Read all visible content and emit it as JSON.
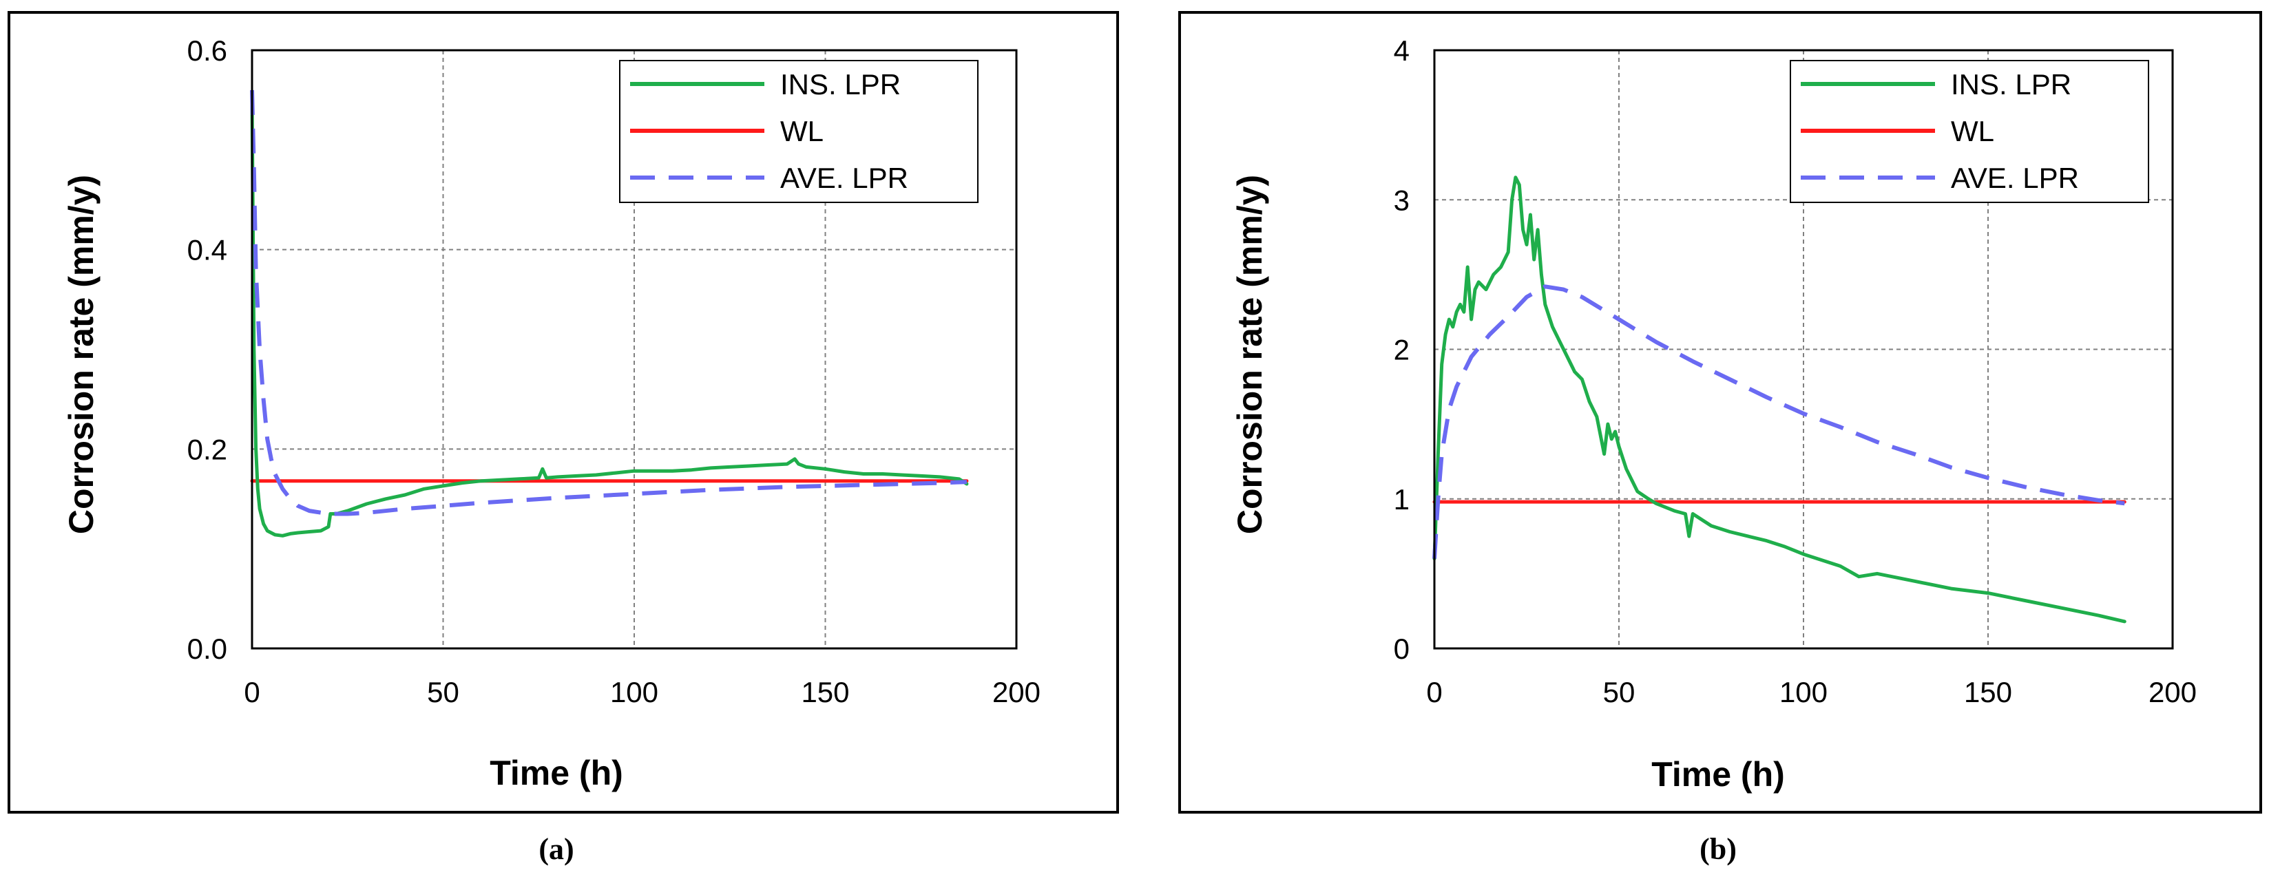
{
  "colors": {
    "ins": "#1fae4b",
    "wl": "#ff1a1a",
    "ave": "#6a6af2",
    "grid": "#808080",
    "frame": "#000000"
  },
  "chart_data": [
    {
      "type": "line",
      "caption": "(a)",
      "xlabel": "Time (h)",
      "ylabel": "Corrosion rate (mm/y)",
      "xlim": [
        0,
        200
      ],
      "ylim": [
        0,
        0.6
      ],
      "xticks": [
        0,
        50,
        100,
        150,
        200
      ],
      "yticks": [
        0,
        0.2,
        0.4,
        0.6
      ],
      "xtick_labels": [
        "0",
        "50",
        "100",
        "150",
        "200"
      ],
      "ytick_labels": [
        "0.0",
        "0.2",
        "0.4",
        "0.6"
      ],
      "grid": true,
      "legend_position": "top-right",
      "series": [
        {
          "name": "INS. LPR",
          "style": "solid",
          "color": "#1fae4b",
          "x": [
            0,
            0.5,
            1,
            1.5,
            2,
            3,
            4,
            6,
            8,
            10,
            12,
            15,
            18,
            20,
            20.5,
            22,
            25,
            30,
            35,
            40,
            45,
            50,
            55,
            60,
            65,
            70,
            75,
            76,
            77,
            80,
            85,
            90,
            95,
            100,
            105,
            110,
            115,
            120,
            125,
            130,
            135,
            140,
            142,
            143,
            145,
            150,
            155,
            160,
            165,
            170,
            175,
            180,
            185,
            187
          ],
          "y": [
            0.55,
            0.3,
            0.2,
            0.16,
            0.14,
            0.125,
            0.118,
            0.114,
            0.113,
            0.115,
            0.116,
            0.117,
            0.118,
            0.122,
            0.135,
            0.135,
            0.138,
            0.145,
            0.15,
            0.154,
            0.16,
            0.163,
            0.166,
            0.168,
            0.169,
            0.17,
            0.171,
            0.18,
            0.171,
            0.172,
            0.173,
            0.174,
            0.176,
            0.178,
            0.178,
            0.178,
            0.179,
            0.181,
            0.182,
            0.183,
            0.184,
            0.185,
            0.19,
            0.185,
            0.182,
            0.18,
            0.177,
            0.175,
            0.175,
            0.174,
            0.173,
            0.172,
            0.17,
            0.165
          ]
        },
        {
          "name": "WL",
          "style": "solid",
          "color": "#ff1a1a",
          "x": [
            0,
            187
          ],
          "y": [
            0.168,
            0.168
          ]
        },
        {
          "name": "AVE. LPR",
          "style": "dashed",
          "color": "#6a6af2",
          "x": [
            0,
            0.5,
            1,
            2,
            3,
            4,
            5,
            6,
            8,
            10,
            12,
            15,
            20,
            25,
            30,
            40,
            50,
            60,
            80,
            100,
            120,
            140,
            160,
            180,
            187
          ],
          "y": [
            0.56,
            0.48,
            0.38,
            0.3,
            0.25,
            0.21,
            0.19,
            0.175,
            0.16,
            0.15,
            0.143,
            0.138,
            0.135,
            0.135,
            0.136,
            0.14,
            0.143,
            0.146,
            0.151,
            0.155,
            0.159,
            0.162,
            0.164,
            0.166,
            0.167
          ]
        }
      ]
    },
    {
      "type": "line",
      "caption": "(b)",
      "xlabel": "Time (h)",
      "ylabel": "Corrosion rate (mm/y)",
      "xlim": [
        0,
        200
      ],
      "ylim": [
        0,
        4
      ],
      "xticks": [
        0,
        50,
        100,
        150,
        200
      ],
      "yticks": [
        0,
        1,
        2,
        3,
        4
      ],
      "xtick_labels": [
        "0",
        "50",
        "100",
        "150",
        "200"
      ],
      "ytick_labels": [
        "0",
        "1",
        "2",
        "3",
        "4"
      ],
      "grid": true,
      "legend_position": "top-right",
      "series": [
        {
          "name": "INS. LPR",
          "style": "solid",
          "color": "#1fae4b",
          "x": [
            0,
            1,
            2,
            3,
            4,
            5,
            6,
            7,
            8,
            9,
            10,
            11,
            12,
            14,
            16,
            18,
            20,
            21,
            22,
            23,
            24,
            25,
            26,
            27,
            28,
            29,
            30,
            32,
            34,
            36,
            38,
            40,
            42,
            44,
            46,
            47,
            48,
            49,
            50,
            52,
            55,
            58,
            60,
            65,
            68,
            69,
            70,
            75,
            80,
            85,
            90,
            95,
            100,
            110,
            115,
            120,
            130,
            140,
            150,
            160,
            170,
            180,
            187
          ],
          "y": [
            0.6,
            1.3,
            1.9,
            2.1,
            2.2,
            2.15,
            2.25,
            2.3,
            2.25,
            2.55,
            2.2,
            2.4,
            2.45,
            2.4,
            2.5,
            2.55,
            2.65,
            3.0,
            3.15,
            3.1,
            2.8,
            2.7,
            2.9,
            2.6,
            2.8,
            2.5,
            2.3,
            2.15,
            2.05,
            1.95,
            1.85,
            1.8,
            1.65,
            1.55,
            1.3,
            1.5,
            1.4,
            1.45,
            1.35,
            1.2,
            1.05,
            1.0,
            0.97,
            0.92,
            0.9,
            0.75,
            0.9,
            0.82,
            0.78,
            0.75,
            0.72,
            0.68,
            0.63,
            0.55,
            0.48,
            0.5,
            0.45,
            0.4,
            0.37,
            0.32,
            0.27,
            0.22,
            0.18
          ]
        },
        {
          "name": "WL",
          "style": "solid",
          "color": "#ff1a1a",
          "x": [
            0,
            187
          ],
          "y": [
            0.98,
            0.98
          ]
        },
        {
          "name": "AVE. LPR",
          "style": "dashed",
          "color": "#6a6af2",
          "x": [
            0,
            1,
            2,
            4,
            6,
            8,
            10,
            15,
            20,
            25,
            30,
            35,
            40,
            50,
            60,
            70,
            80,
            90,
            100,
            110,
            120,
            130,
            140,
            150,
            160,
            170,
            180,
            187
          ],
          "y": [
            0.6,
            1.0,
            1.3,
            1.6,
            1.75,
            1.85,
            1.95,
            2.1,
            2.22,
            2.35,
            2.42,
            2.4,
            2.35,
            2.2,
            2.05,
            1.92,
            1.8,
            1.68,
            1.57,
            1.48,
            1.38,
            1.3,
            1.21,
            1.14,
            1.08,
            1.03,
            0.99,
            0.97
          ]
        }
      ]
    }
  ]
}
